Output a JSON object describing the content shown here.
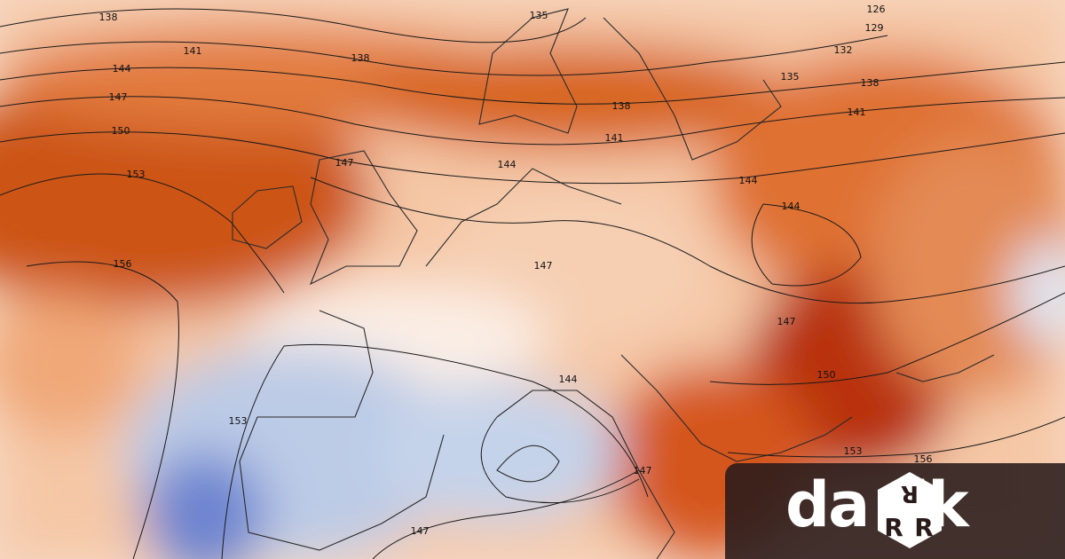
{
  "map": {
    "colors": {
      "warm_strong": "#c9470f",
      "warm": "#e07a3c",
      "warm_light": "#f3b48a",
      "neutral": "#fbe9dd",
      "cool": "#c9d6ea",
      "cool_strong": "#6f86cf",
      "hot_core": "#a8210f",
      "coast": "#2b2b2b"
    },
    "contour_labels": [
      "138",
      "135",
      "126",
      "129",
      "141",
      "138",
      "132",
      "144",
      "135",
      "138",
      "147",
      "138",
      "141",
      "150",
      "141",
      "147",
      "144",
      "153",
      "144",
      "144",
      "147",
      "156",
      "147",
      "150",
      "144",
      "153",
      "153",
      "156",
      "147",
      "147"
    ]
  },
  "logo": {
    "text": "darrik",
    "display": "da  ik",
    "icon": "dice-icon",
    "letter": "R"
  }
}
